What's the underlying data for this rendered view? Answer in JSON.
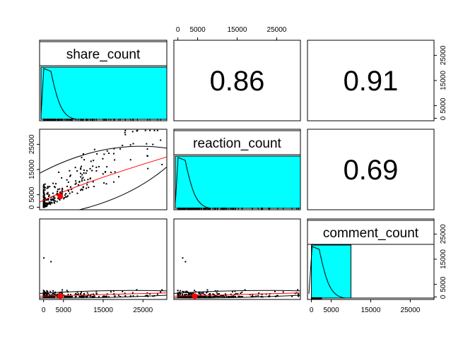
{
  "chart_data": {
    "type": "scatter",
    "kind": "pairs-panels",
    "variables": [
      "share_count",
      "reaction_count",
      "comment_count"
    ],
    "correlations": [
      {
        "row": 0,
        "col": 1,
        "value": "0.86"
      },
      {
        "row": 0,
        "col": 2,
        "value": "0.91"
      },
      {
        "row": 1,
        "col": 2,
        "value": "0.69"
      }
    ],
    "axis": {
      "range": [
        -1000,
        31000
      ],
      "ticks": [
        0,
        5000,
        15000,
        25000
      ],
      "tick_labels": [
        "0",
        "5000",
        "15000",
        "25000"
      ]
    },
    "histogram": {
      "fill": "#00ffff"
    },
    "loess_color": "#ff0000",
    "mean_point_color": "#ff0000",
    "means": {
      "share_count": 4200,
      "reaction_count": 4300,
      "comment_count": 300
    },
    "grid": false
  }
}
